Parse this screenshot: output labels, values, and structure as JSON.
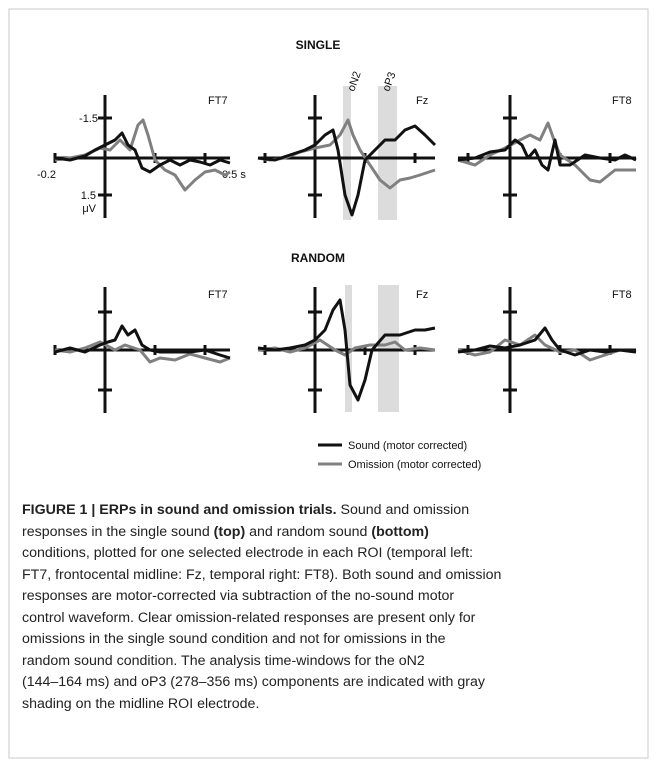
{
  "figure": {
    "panels": {
      "single": {
        "title": "SINGLE",
        "electrodes": [
          "FT7",
          "Fz",
          "FT8"
        ]
      },
      "random": {
        "title": "RANDOM",
        "electrodes": [
          "FT7",
          "Fz",
          "FT8"
        ]
      }
    },
    "axis_labels": {
      "y_top": "-1.5",
      "y_bottom": "1.5",
      "y_unit": "μV",
      "x_start": "-0.2",
      "x_end": "0.5 s"
    },
    "windows": [
      "oN2",
      "oP3"
    ],
    "legend": [
      "Sound (motor corrected)",
      "Omission (motor corrected)"
    ]
  },
  "caption": {
    "lines": [
      [
        "FIGURE 1 | ERPs in sound and omission trials.",
        " Sound and omission"
      ],
      [
        "responses in the single sound ",
        "(top)",
        " and random sound ",
        "(bottom)"
      ],
      [
        "conditions, plotted for one selected electrode in each ROI (temporal left:"
      ],
      [
        "FT7, frontocental midline: Fz, temporal right: FT8). Both sound and omission"
      ],
      [
        "responses are motor-corrected via subtraction of the no-sound motor"
      ],
      [
        "control waveform. Clear omission-related responses are present only for"
      ],
      [
        "omissions in the single sound condition and not for omissions in the"
      ],
      [
        "random sound condition. The analysis time-windows for the oN2"
      ],
      [
        "(144–164 ms) and oP3 (278–356 ms) components are indicated with gray"
      ],
      [
        "shading on the midline ROI electrode."
      ]
    ]
  }
}
